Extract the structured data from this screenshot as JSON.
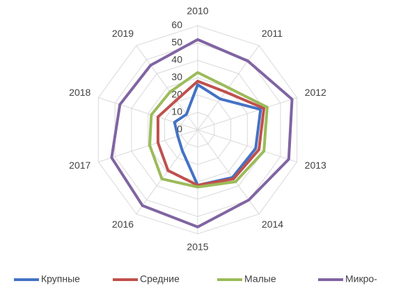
{
  "chart_data": {
    "type": "radar",
    "categories": [
      "2010",
      "2011",
      "2012",
      "2013",
      "2014",
      "2015",
      "2016",
      "2017",
      "2018",
      "2019"
    ],
    "ylim": [
      0,
      60
    ],
    "yticks": [
      0,
      10,
      20,
      30,
      40,
      50,
      60
    ],
    "grid": true,
    "legend": "bottom",
    "series": [
      {
        "name": "Крупные",
        "color": "#4472c4",
        "values": [
          26,
          22,
          38,
          35,
          34,
          32,
          15,
          12,
          14,
          11
        ]
      },
      {
        "name": "Средние",
        "color": "#c0504d",
        "values": [
          28,
          27,
          40,
          37,
          35,
          32,
          29,
          24,
          24,
          21
        ]
      },
      {
        "name": "Малые",
        "color": "#9bbb59",
        "values": [
          33,
          30,
          42,
          40,
          37,
          33,
          35,
          29,
          28,
          27
        ]
      },
      {
        "name": "Микро-",
        "color": "#8064a2",
        "values": [
          52,
          49,
          57,
          55,
          50,
          56,
          54,
          52,
          47,
          46
        ]
      }
    ]
  }
}
